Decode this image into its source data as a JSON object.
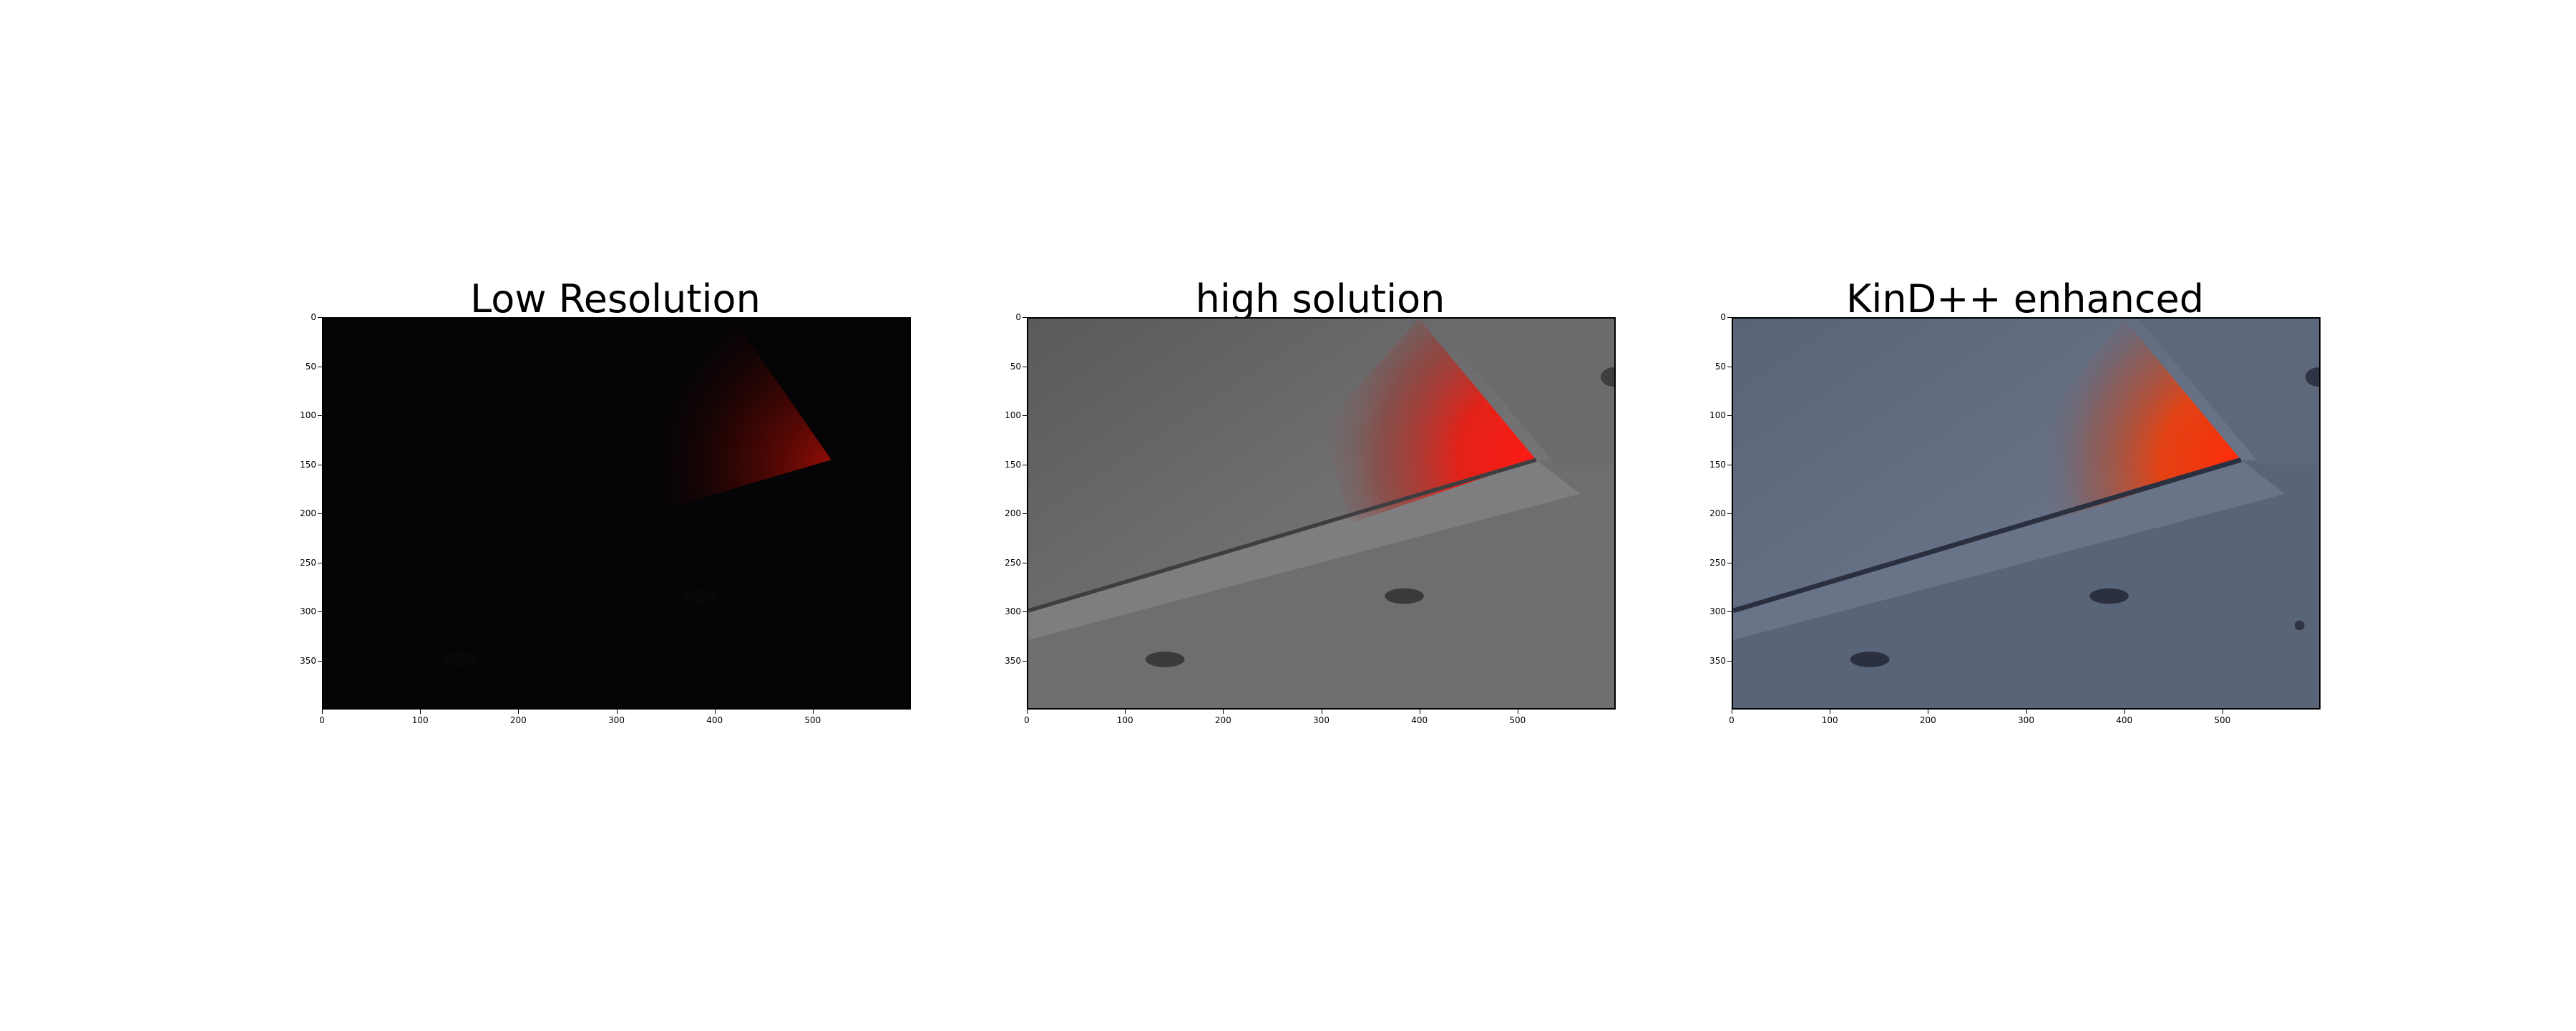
{
  "panels": [
    {
      "title": "Low Resolution",
      "x_ticks": [
        "0",
        "100",
        "200",
        "300",
        "400",
        "500"
      ],
      "y_ticks": [
        "0",
        "50",
        "100",
        "150",
        "200",
        "250",
        "300",
        "350"
      ]
    },
    {
      "title": "high solution",
      "x_ticks": [
        "0",
        "100",
        "200",
        "300",
        "400",
        "500"
      ],
      "y_ticks": [
        "0",
        "50",
        "100",
        "150",
        "200",
        "250",
        "300",
        "350"
      ]
    },
    {
      "title": "KinD++ enhanced",
      "x_ticks": [
        "0",
        "100",
        "200",
        "300",
        "400",
        "500"
      ],
      "y_ticks": [
        "0",
        "50",
        "100",
        "150",
        "200",
        "250",
        "300",
        "350"
      ]
    }
  ]
}
